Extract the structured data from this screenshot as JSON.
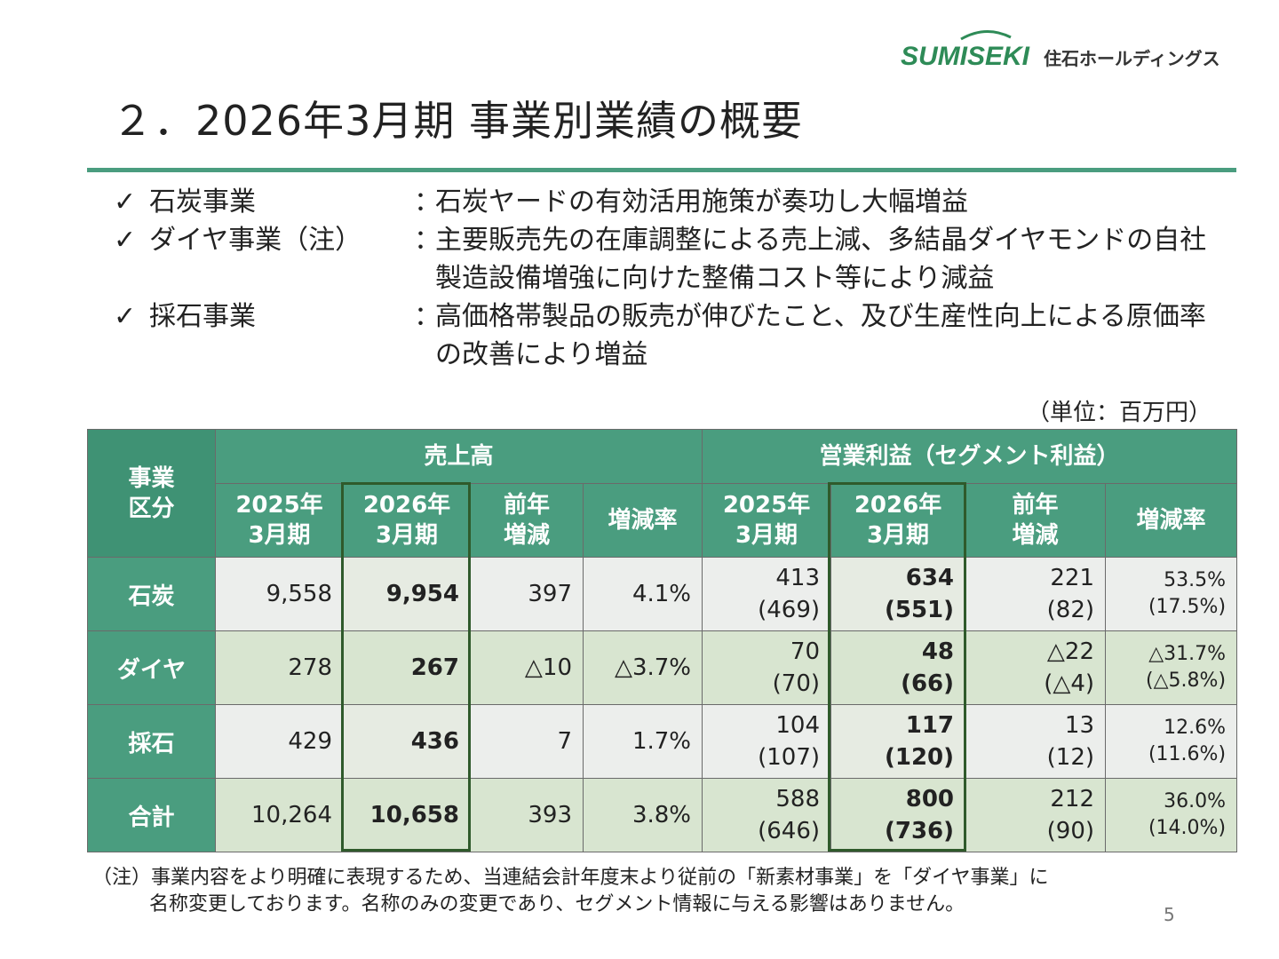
{
  "logo": {
    "brand": "SUMISEKI",
    "company": "住石ホールディングス",
    "brand_color": "#2e8b57"
  },
  "title": "２．2026年3月期 事業別業績の概要",
  "bullets": [
    {
      "mark": "✓",
      "name": "石炭事業",
      "colon": "：",
      "desc": "石炭ヤードの有効活用施策が奏功し大幅増益"
    },
    {
      "mark": "✓",
      "name": "ダイヤ事業（注）",
      "colon": "：",
      "desc": "主要販売先の在庫調整による売上減、多結晶ダイヤモンドの自社製造設備増強に向けた整備コスト等により減益"
    },
    {
      "mark": "✓",
      "name": "採石事業",
      "colon": "：",
      "desc": "高価格帯製品の販売が伸びたこと、及び生産性向上による原価率の改善により増益"
    }
  ],
  "unit": "（単位：百万円）",
  "table": {
    "segment_header": "事業\n区分",
    "sales_header": "売上高",
    "profit_header": "営業利益（セグメント利益）",
    "sub_headers": [
      "2025年\n3月期",
      "2026年\n3月期",
      "前年\n増減",
      "増減率",
      "2025年\n3月期",
      "2026年\n3月期",
      "前年\n増減",
      "増減率"
    ],
    "rows": [
      {
        "segment": "石炭",
        "cells": [
          "9,558",
          "9,954",
          "397",
          "4.1%",
          "413\n(469)",
          "634\n(551)",
          "221\n(82)",
          "53.5%\n(17.5%)"
        ]
      },
      {
        "segment": "ダイヤ",
        "cells": [
          "278",
          "267",
          "△10",
          "△3.7%",
          "70\n(70)",
          "48\n(66)",
          "△22\n(△4)",
          "△31.7%\n(△5.8%)"
        ]
      },
      {
        "segment": "採石",
        "cells": [
          "429",
          "436",
          "7",
          "1.7%",
          "104\n(107)",
          "117\n(120)",
          "13\n(12)",
          "12.6%\n(11.6%)"
        ]
      },
      {
        "segment": "合計",
        "cells": [
          "10,264",
          "10,658",
          "393",
          "3.8%",
          "588\n(646)",
          "800\n(736)",
          "212\n(90)",
          "36.0%\n(14.0%)"
        ]
      }
    ],
    "header_color": "#4a9d7f",
    "highlight_box_color": "#2f5a2b"
  },
  "note": {
    "line1": "（注）事業内容をより明確に表現するため、当連結会計年度末より従前の「新素材事業」を「ダイヤ事業」に",
    "line2": "名称変更しております。名称のみの変更であり、セグメント情報に与える影響はありません。"
  },
  "page_number": "5"
}
